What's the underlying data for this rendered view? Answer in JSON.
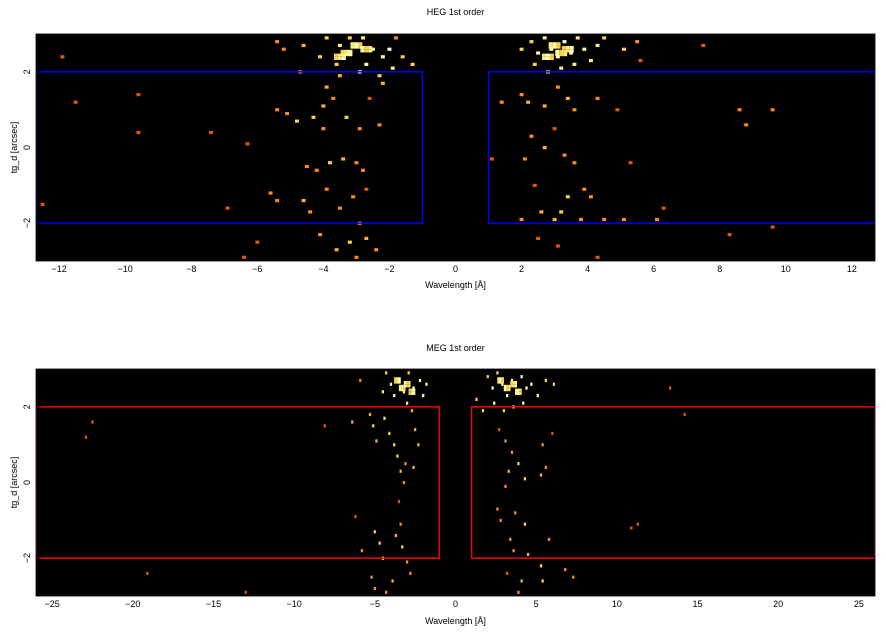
{
  "chart_data": [
    {
      "type": "heatmap",
      "title": "HEG 1st order",
      "xlabel": "Wavelength [Å]",
      "ylabel": "tg_d [arcsec]",
      "xlim": [
        -12.7,
        12.7
      ],
      "ylim": [
        -3.0,
        3.0
      ],
      "xticks": [
        -12,
        -10,
        -8,
        -6,
        -4,
        -2,
        0,
        2,
        4,
        6,
        8,
        10,
        12
      ],
      "xtick_labels": [
        "−12",
        "−10",
        "−8",
        "−6",
        "−4",
        "−2",
        "0",
        "2",
        "4",
        "6",
        "8",
        "10",
        "12"
      ],
      "yticks": [
        -2,
        0,
        2
      ],
      "ytick_labels": [
        "−2",
        "0",
        "2"
      ],
      "background_color": "#000000",
      "region_color": "#0000ff",
      "regions": [
        {
          "x0": -12.7,
          "x1": -1.0,
          "y0": -2.0,
          "y1": 2.0
        },
        {
          "x0": 1.0,
          "x1": 12.7,
          "y0": -2.0,
          "y1": 2.0
        }
      ],
      "colorscale": [
        "#e05a00",
        "#ff8a1e",
        "#ffb030",
        "#ffd04a",
        "#ffef7a",
        "#ffffb0"
      ],
      "events": [
        [
          -11.9,
          2.4
        ],
        [
          -11.5,
          1.2
        ],
        [
          -9.6,
          1.4
        ],
        [
          -9.6,
          0.4
        ],
        [
          -7.4,
          0.4
        ],
        [
          -6.3,
          0.1
        ],
        [
          -5.4,
          1.0
        ],
        [
          -5.1,
          0.9
        ],
        [
          -4.8,
          0.7
        ],
        [
          -4.0,
          1.1
        ],
        [
          -4.0,
          0.5
        ],
        [
          -4.3,
          0.8
        ],
        [
          -3.9,
          1.6
        ],
        [
          -4.5,
          -0.5
        ],
        [
          -4.2,
          -0.6
        ],
        [
          -3.8,
          -0.4
        ],
        [
          -3.4,
          -0.3
        ],
        [
          -3.0,
          -0.4
        ],
        [
          -2.8,
          -0.6
        ],
        [
          -3.9,
          -1.1
        ],
        [
          -3.1,
          -1.3
        ],
        [
          -2.7,
          -1.1
        ],
        [
          -4.6,
          -1.4
        ],
        [
          -4.4,
          -1.7
        ],
        [
          -5.4,
          -1.4
        ],
        [
          -3.5,
          -1.6
        ],
        [
          -2.9,
          -2.0
        ],
        [
          -4.1,
          -2.3
        ],
        [
          -3.2,
          -2.5
        ],
        [
          -3.6,
          -2.7
        ],
        [
          -2.7,
          -2.4
        ],
        [
          -2.4,
          -2.7
        ],
        [
          -3.0,
          -2.9
        ],
        [
          -6.0,
          -2.5
        ],
        [
          -6.4,
          -2.9
        ],
        [
          -6.9,
          -1.6
        ],
        [
          -5.6,
          -1.2
        ],
        [
          -3.7,
          1.3
        ],
        [
          -3.3,
          0.8
        ],
        [
          -2.9,
          0.5
        ],
        [
          -2.3,
          0.6
        ],
        [
          -2.6,
          1.3
        ],
        [
          -2.2,
          1.7
        ],
        [
          -3.5,
          1.9
        ],
        [
          -4.7,
          2.0
        ],
        [
          -4.1,
          2.4
        ],
        [
          -4.6,
          2.7
        ],
        [
          -5.4,
          2.8
        ],
        [
          -5.2,
          2.6
        ],
        [
          -3.6,
          2.2
        ],
        [
          -3.3,
          2.5
        ],
        [
          -3.0,
          2.7
        ],
        [
          -2.8,
          2.9
        ],
        [
          -2.5,
          2.6
        ],
        [
          -2.2,
          2.4
        ],
        [
          -1.9,
          2.1
        ],
        [
          -2.0,
          2.6
        ],
        [
          -1.8,
          2.9
        ],
        [
          -3.2,
          2.9
        ],
        [
          -3.9,
          2.9
        ],
        [
          -3.5,
          2.7
        ],
        [
          -2.7,
          2.2
        ],
        [
          -2.9,
          2.0
        ],
        [
          -2.3,
          1.9
        ],
        [
          -12.5,
          -1.5
        ],
        [
          -1.6,
          2.4
        ],
        [
          -1.3,
          2.2
        ],
        [
          2.0,
          2.6
        ],
        [
          2.3,
          2.8
        ],
        [
          2.5,
          2.5
        ],
        [
          2.7,
          2.9
        ],
        [
          2.9,
          2.6
        ],
        [
          3.1,
          2.4
        ],
        [
          3.3,
          2.8
        ],
        [
          3.5,
          2.5
        ],
        [
          3.7,
          2.9
        ],
        [
          3.9,
          2.6
        ],
        [
          4.1,
          2.3
        ],
        [
          4.3,
          2.7
        ],
        [
          4.5,
          2.9
        ],
        [
          2.4,
          2.2
        ],
        [
          2.8,
          2.0
        ],
        [
          3.2,
          2.1
        ],
        [
          3.6,
          2.2
        ],
        [
          5.1,
          2.6
        ],
        [
          5.6,
          2.3
        ],
        [
          5.5,
          2.8
        ],
        [
          7.5,
          2.7
        ],
        [
          2.0,
          1.4
        ],
        [
          2.2,
          1.2
        ],
        [
          2.7,
          1.1
        ],
        [
          3.1,
          1.6
        ],
        [
          3.4,
          1.3
        ],
        [
          3.6,
          1.0
        ],
        [
          4.3,
          1.3
        ],
        [
          4.9,
          1.0
        ],
        [
          3.0,
          0.5
        ],
        [
          2.3,
          0.3
        ],
        [
          3.3,
          -0.2
        ],
        [
          3.6,
          -0.4
        ],
        [
          2.7,
          0.0
        ],
        [
          1.1,
          -0.3
        ],
        [
          2.1,
          -0.3
        ],
        [
          2.4,
          -1.0
        ],
        [
          3.4,
          -1.3
        ],
        [
          3.9,
          -1.1
        ],
        [
          4.1,
          -1.3
        ],
        [
          2.6,
          -1.7
        ],
        [
          3.0,
          -1.9
        ],
        [
          3.2,
          -1.7
        ],
        [
          3.8,
          -1.9
        ],
        [
          4.5,
          -1.9
        ],
        [
          5.3,
          -0.4
        ],
        [
          6.3,
          -1.6
        ],
        [
          6.1,
          -1.9
        ],
        [
          5.1,
          -1.9
        ],
        [
          2.0,
          -1.9
        ],
        [
          2.5,
          -2.4
        ],
        [
          3.1,
          -2.6
        ],
        [
          4.3,
          -2.9
        ],
        [
          8.3,
          -2.3
        ],
        [
          9.6,
          -2.1
        ],
        [
          8.6,
          1.0
        ],
        [
          8.8,
          0.6
        ],
        [
          9.6,
          1.0
        ],
        [
          1.4,
          1.2
        ]
      ]
    },
    {
      "type": "heatmap",
      "title": "MEG 1st order",
      "xlabel": "Wavelength [Å]",
      "ylabel": "tg_d [arcsec]",
      "xlim": [
        -26.0,
        26.0
      ],
      "ylim": [
        -3.0,
        3.0
      ],
      "xticks": [
        -25,
        -20,
        -15,
        -10,
        -5,
        0,
        5,
        10,
        15,
        20,
        25
      ],
      "xtick_labels": [
        "−25",
        "−20",
        "−15",
        "−10",
        "−5",
        "0",
        "5",
        "10",
        "15",
        "20",
        "25"
      ],
      "yticks": [
        -2,
        0,
        2
      ],
      "ytick_labels": [
        "−2",
        "0",
        "2"
      ],
      "background_color": "#000000",
      "region_color": "#ff0000",
      "regions": [
        {
          "x0": -26.0,
          "x1": -1.0,
          "y0": -2.0,
          "y1": 2.0
        },
        {
          "x0": 1.0,
          "x1": 26.0,
          "y0": -2.0,
          "y1": 2.0
        }
      ],
      "colorscale": [
        "#e05a00",
        "#ff8a1e",
        "#ffb030",
        "#ffd04a",
        "#ffef7a",
        "#ffffb0"
      ],
      "events": [
        [
          -22.5,
          1.6
        ],
        [
          -22.9,
          1.2
        ],
        [
          -19.1,
          -2.4
        ],
        [
          -13.0,
          -2.9
        ],
        [
          -8.1,
          1.5
        ],
        [
          -6.4,
          1.6
        ],
        [
          -6.2,
          -0.9
        ],
        [
          -5.8,
          -1.8
        ],
        [
          -5.9,
          2.7
        ],
        [
          -5.3,
          1.8
        ],
        [
          -5.1,
          1.5
        ],
        [
          -4.9,
          1.1
        ],
        [
          -5.0,
          -1.3
        ],
        [
          -4.7,
          -1.6
        ],
        [
          -4.5,
          -2.0
        ],
        [
          -5.2,
          -2.5
        ],
        [
          -5.0,
          -2.8
        ],
        [
          -4.3,
          -2.9
        ],
        [
          -3.9,
          -2.6
        ],
        [
          -4.4,
          1.7
        ],
        [
          -4.1,
          1.3
        ],
        [
          -3.8,
          1.0
        ],
        [
          -3.6,
          0.7
        ],
        [
          -3.4,
          0.3
        ],
        [
          -3.2,
          0.0
        ],
        [
          -3.5,
          -0.5
        ],
        [
          -3.4,
          -1.1
        ],
        [
          -3.7,
          -1.4
        ],
        [
          -3.3,
          -1.7
        ],
        [
          -3.0,
          -2.1
        ],
        [
          -2.8,
          -2.4
        ],
        [
          -2.7,
          1.9
        ],
        [
          -2.5,
          1.4
        ],
        [
          -2.3,
          1.0
        ],
        [
          -2.6,
          0.4
        ],
        [
          -3.1,
          0.5
        ],
        [
          -4.0,
          2.6
        ],
        [
          -4.3,
          2.9
        ],
        [
          -3.8,
          2.3
        ],
        [
          -3.5,
          2.7
        ],
        [
          -3.2,
          2.4
        ],
        [
          -2.9,
          2.9
        ],
        [
          -2.6,
          2.5
        ],
        [
          -2.2,
          2.7
        ],
        [
          -2.0,
          2.3
        ],
        [
          -4.5,
          2.4
        ],
        [
          -3.0,
          2.1
        ],
        [
          -1.8,
          2.6
        ],
        [
          2.0,
          2.8
        ],
        [
          2.3,
          2.5
        ],
        [
          2.6,
          2.9
        ],
        [
          2.9,
          2.6
        ],
        [
          3.2,
          2.3
        ],
        [
          3.5,
          2.7
        ],
        [
          3.8,
          2.4
        ],
        [
          4.1,
          2.8
        ],
        [
          4.4,
          2.5
        ],
        [
          2.4,
          2.1
        ],
        [
          3.0,
          1.9
        ],
        [
          3.6,
          2.0
        ],
        [
          4.2,
          2.1
        ],
        [
          4.7,
          2.6
        ],
        [
          5.1,
          2.3
        ],
        [
          5.6,
          2.7
        ],
        [
          6.1,
          2.6
        ],
        [
          2.7,
          1.4
        ],
        [
          3.1,
          1.1
        ],
        [
          3.5,
          0.8
        ],
        [
          3.3,
          0.3
        ],
        [
          3.9,
          0.5
        ],
        [
          4.3,
          0.1
        ],
        [
          3.1,
          -0.1
        ],
        [
          2.6,
          -0.7
        ],
        [
          2.8,
          -1.0
        ],
        [
          3.7,
          -0.8
        ],
        [
          4.3,
          -1.1
        ],
        [
          3.4,
          -1.5
        ],
        [
          3.6,
          -1.8
        ],
        [
          4.5,
          -1.9
        ],
        [
          3.2,
          -2.4
        ],
        [
          4.1,
          -2.6
        ],
        [
          3.9,
          -2.9
        ],
        [
          5.4,
          -2.6
        ],
        [
          5.3,
          -2.2
        ],
        [
          5.8,
          -1.5
        ],
        [
          5.4,
          1.0
        ],
        [
          5.6,
          0.4
        ],
        [
          5.3,
          0.2
        ],
        [
          6.0,
          1.3
        ],
        [
          6.8,
          -2.3
        ],
        [
          7.3,
          -2.5
        ],
        [
          10.9,
          -1.2
        ],
        [
          11.3,
          -1.1
        ],
        [
          13.3,
          2.5
        ],
        [
          14.2,
          1.8
        ],
        [
          1.3,
          2.2
        ],
        [
          1.7,
          1.9
        ]
      ]
    }
  ]
}
